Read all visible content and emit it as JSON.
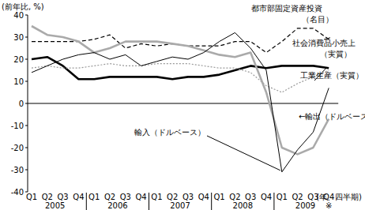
{
  "chart_data": {
    "type": "line",
    "y_label": "(前年比, %)",
    "x_label": "(年、四半期)",
    "categories": [
      "Q1",
      "Q2",
      "Q3",
      "Q4",
      "Q1",
      "Q2",
      "Q3",
      "Q4",
      "Q1",
      "Q2",
      "Q3",
      "Q4",
      "Q1",
      "Q2",
      "Q3",
      "Q4",
      "Q1",
      "Q2",
      "Q3",
      "Q4"
    ],
    "years": [
      "2005",
      "2006",
      "2007",
      "2008",
      "2009"
    ],
    "footnote_mark": "※",
    "ylim": [
      -40,
      40
    ],
    "yticks": [
      -40,
      -30,
      -20,
      -10,
      0,
      10,
      20,
      30,
      40
    ],
    "grid": false,
    "series": [
      {
        "name": "都市部固定資産投資（名目）",
        "color": "#000000",
        "line_style": "dashed",
        "values": [
          28,
          28,
          28,
          28,
          29,
          31,
          25,
          27,
          26,
          27,
          26,
          26,
          26,
          28,
          28,
          23,
          28,
          34,
          34,
          29
        ]
      },
      {
        "name": "社会消費品小売上（実質）",
        "color": "#000000",
        "line_style": "thick",
        "values": [
          20,
          21,
          17,
          11,
          11,
          12,
          12,
          12,
          12,
          11,
          12,
          12,
          13,
          15,
          17,
          16,
          17,
          17,
          17,
          16
        ]
      },
      {
        "name": "工業生産（実質）",
        "color": "#999999",
        "line_style": "dotted",
        "values": [
          16,
          17,
          16,
          16,
          17,
          18,
          17,
          17,
          18,
          18,
          18,
          17,
          16,
          16,
          14,
          8,
          5,
          9,
          12,
          15
        ]
      },
      {
        "name": "輸出（ドルベース）",
        "color": "#aaaaaa",
        "line_style": "thick",
        "values": [
          35,
          31,
          30,
          28,
          23,
          25,
          28,
          28,
          28,
          27,
          26,
          24,
          22,
          21,
          23,
          5,
          -20,
          -23,
          -20,
          -7
        ]
      },
      {
        "name": "輸入（ドルベース）",
        "color": "#000000",
        "line_style": "thin",
        "values": [
          14,
          17,
          20,
          22,
          23,
          20,
          22,
          17,
          19,
          21,
          20,
          23,
          28,
          32,
          25,
          15,
          -31,
          -21,
          -13,
          7
        ]
      }
    ],
    "annotations": [
      "都市部固定資産投資",
      "（名目）",
      "社会消費品小売上",
      "（実質）",
      "工業生産（実質）",
      "輸入（ドルベース）",
      "←輸出（ドルベース）"
    ]
  }
}
